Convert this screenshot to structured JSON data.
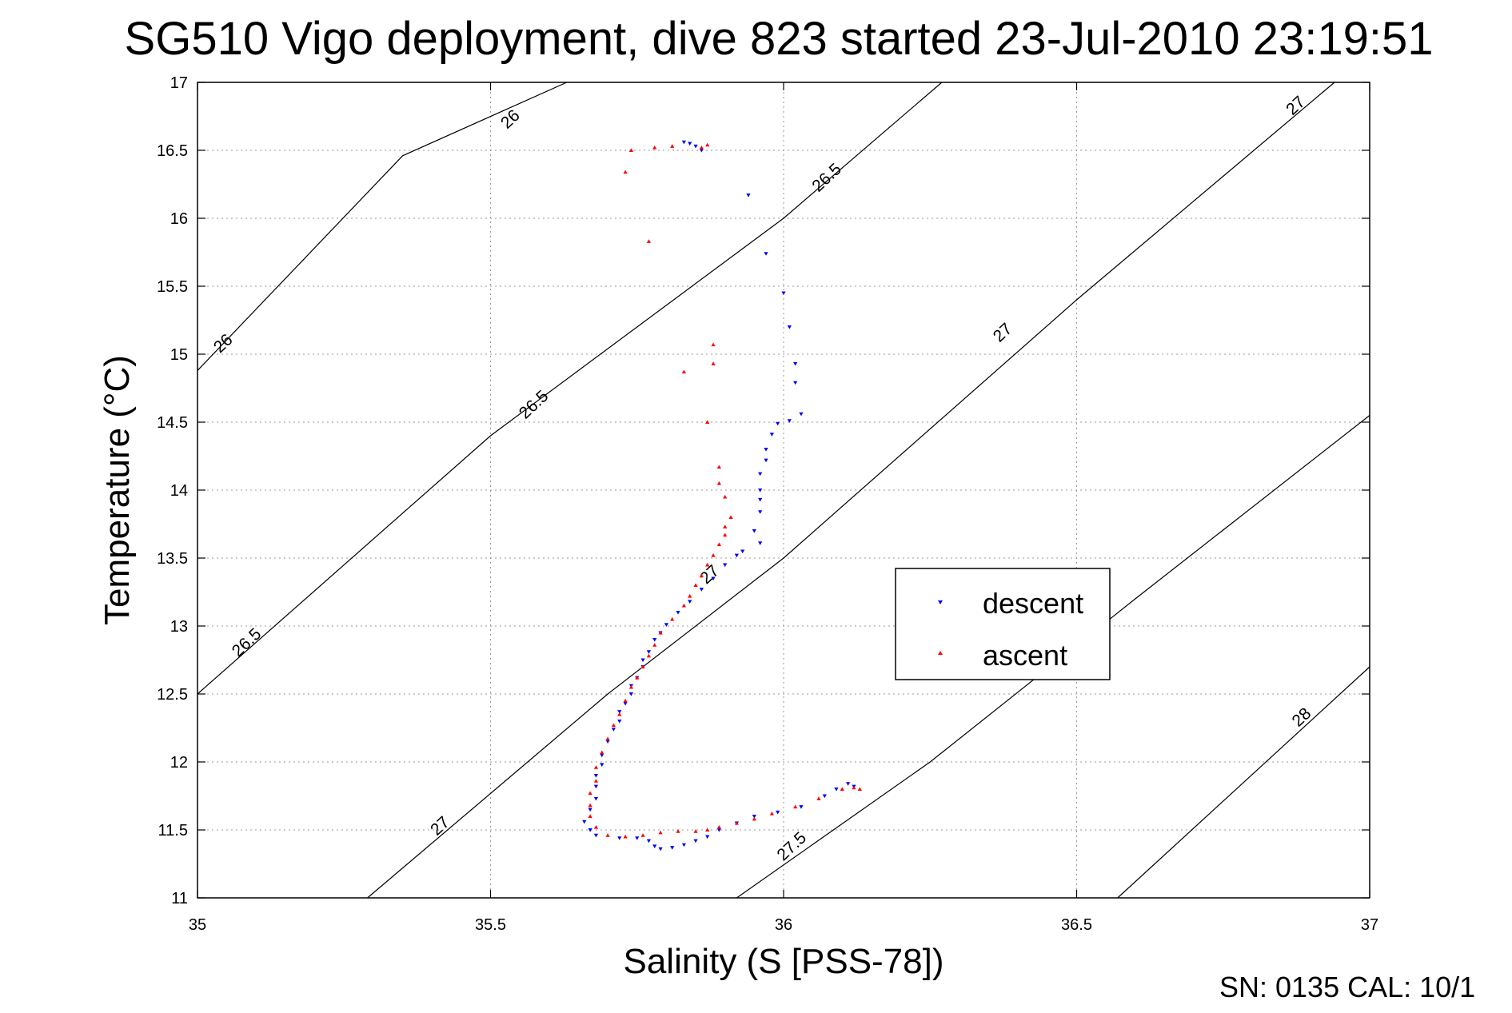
{
  "chart_data": {
    "type": "scatter",
    "title": "SG510 Vigo deployment, dive 823 started 23-Jul-2010 23:19:51",
    "xlabel": "Salinity (S [PSS-78])",
    "ylabel": "Temperature (°C)",
    "xlim": [
      35,
      37
    ],
    "ylim": [
      11,
      17
    ],
    "x_ticks": [
      "35",
      "35.5",
      "36",
      "36.5",
      "37"
    ],
    "y_ticks": [
      "11",
      "11.5",
      "12",
      "12.5",
      "13",
      "13.5",
      "14",
      "14.5",
      "15",
      "15.5",
      "16",
      "16.5",
      "17"
    ],
    "grid": true,
    "legend_position": "right",
    "colors": {
      "descent": "#0000ff",
      "ascent": "#ff0000",
      "contour": "#000000",
      "grid": "#999999"
    },
    "density_contours": [
      {
        "name": "26",
        "points": [
          [
            35.0,
            14.88
          ],
          [
            35.35,
            16.46
          ],
          [
            35.63,
            17.0
          ]
        ]
      },
      {
        "name": "26.5",
        "points": [
          [
            35.0,
            12.5
          ],
          [
            35.5,
            14.4
          ],
          [
            36.0,
            16.0
          ],
          [
            36.27,
            17.0
          ]
        ]
      },
      {
        "name": "27",
        "points": [
          [
            35.29,
            11.0
          ],
          [
            35.7,
            12.5
          ],
          [
            36.0,
            13.5
          ],
          [
            36.5,
            15.4
          ],
          [
            36.94,
            17.0
          ]
        ]
      },
      {
        "name": "27.5",
        "points": [
          [
            35.92,
            11.0
          ],
          [
            36.25,
            12.0
          ],
          [
            36.6,
            13.2
          ],
          [
            37.0,
            14.55
          ]
        ]
      },
      {
        "name": "28",
        "points": [
          [
            36.57,
            11.0
          ],
          [
            37.0,
            12.7
          ]
        ]
      }
    ],
    "contour_labels": [
      {
        "text": "26",
        "x": 35.54,
        "y": 16.7
      },
      {
        "text": "26",
        "x": 35.05,
        "y": 15.05
      },
      {
        "text": "26.5",
        "x": 36.08,
        "y": 16.27
      },
      {
        "text": "26.5",
        "x": 35.58,
        "y": 14.6
      },
      {
        "text": "26.5",
        "x": 35.09,
        "y": 12.85
      },
      {
        "text": "27",
        "x": 36.88,
        "y": 16.8
      },
      {
        "text": "27",
        "x": 36.38,
        "y": 15.13
      },
      {
        "text": "27",
        "x": 35.88,
        "y": 13.35
      },
      {
        "text": "27",
        "x": 35.42,
        "y": 11.5
      },
      {
        "text": "27.5",
        "x": 36.02,
        "y": 11.35
      },
      {
        "text": "28",
        "x": 36.89,
        "y": 12.3
      }
    ],
    "series": [
      {
        "name": "descent",
        "marker": "triangle-down",
        "points": [
          [
            35.83,
            16.56
          ],
          [
            35.84,
            16.55
          ],
          [
            35.85,
            16.53
          ],
          [
            35.86,
            16.5
          ],
          [
            35.94,
            16.17
          ],
          [
            35.97,
            15.74
          ],
          [
            36.0,
            15.45
          ],
          [
            36.01,
            15.2
          ],
          [
            36.02,
            14.93
          ],
          [
            36.02,
            14.79
          ],
          [
            36.03,
            14.56
          ],
          [
            36.01,
            14.51
          ],
          [
            35.99,
            14.49
          ],
          [
            35.98,
            14.41
          ],
          [
            35.97,
            14.3
          ],
          [
            35.97,
            14.22
          ],
          [
            35.96,
            14.12
          ],
          [
            35.96,
            14.0
          ],
          [
            35.96,
            13.93
          ],
          [
            35.96,
            13.84
          ],
          [
            35.95,
            13.7
          ],
          [
            35.96,
            13.61
          ],
          [
            35.93,
            13.55
          ],
          [
            35.92,
            13.52
          ],
          [
            35.9,
            13.45
          ],
          [
            35.88,
            13.35
          ],
          [
            35.86,
            13.27
          ],
          [
            35.84,
            13.18
          ],
          [
            35.82,
            13.1
          ],
          [
            35.8,
            13.01
          ],
          [
            35.79,
            12.95
          ],
          [
            35.78,
            12.9
          ],
          [
            35.77,
            12.81
          ],
          [
            35.76,
            12.75
          ],
          [
            35.76,
            12.7
          ],
          [
            35.75,
            12.62
          ],
          [
            35.74,
            12.56
          ],
          [
            35.74,
            12.5
          ],
          [
            35.73,
            12.43
          ],
          [
            35.72,
            12.37
          ],
          [
            35.72,
            12.3
          ],
          [
            35.71,
            12.24
          ],
          [
            35.7,
            12.15
          ],
          [
            35.69,
            12.05
          ],
          [
            35.69,
            11.98
          ],
          [
            35.68,
            11.9
          ],
          [
            35.68,
            11.82
          ],
          [
            35.68,
            11.73
          ],
          [
            35.67,
            11.65
          ],
          [
            35.66,
            11.56
          ],
          [
            35.67,
            11.5
          ],
          [
            35.68,
            11.46
          ],
          [
            35.72,
            11.44
          ],
          [
            35.75,
            11.44
          ],
          [
            35.77,
            11.42
          ],
          [
            35.78,
            11.38
          ],
          [
            35.79,
            11.36
          ],
          [
            35.81,
            11.37
          ],
          [
            35.83,
            11.39
          ],
          [
            35.85,
            11.42
          ],
          [
            35.87,
            11.45
          ],
          [
            35.89,
            11.5
          ],
          [
            35.92,
            11.55
          ],
          [
            35.95,
            11.6
          ],
          [
            35.99,
            11.63
          ],
          [
            36.03,
            11.67
          ],
          [
            36.07,
            11.75
          ],
          [
            36.09,
            11.8
          ],
          [
            36.11,
            11.84
          ],
          [
            36.12,
            11.82
          ]
        ]
      },
      {
        "name": "ascent",
        "marker": "triangle-up",
        "points": [
          [
            35.74,
            16.5
          ],
          [
            35.78,
            16.52
          ],
          [
            35.81,
            16.53
          ],
          [
            35.87,
            16.54
          ],
          [
            35.86,
            16.52
          ],
          [
            35.73,
            16.34
          ],
          [
            35.77,
            15.83
          ],
          [
            35.88,
            15.07
          ],
          [
            35.88,
            14.93
          ],
          [
            35.83,
            14.87
          ],
          [
            35.87,
            14.5
          ],
          [
            35.89,
            14.17
          ],
          [
            35.89,
            14.05
          ],
          [
            35.9,
            13.95
          ],
          [
            35.91,
            13.8
          ],
          [
            35.9,
            13.73
          ],
          [
            35.9,
            13.67
          ],
          [
            35.89,
            13.6
          ],
          [
            35.88,
            13.52
          ],
          [
            35.87,
            13.45
          ],
          [
            35.86,
            13.37
          ],
          [
            35.85,
            13.3
          ],
          [
            35.84,
            13.22
          ],
          [
            35.83,
            13.15
          ],
          [
            35.81,
            13.05
          ],
          [
            35.79,
            12.95
          ],
          [
            35.78,
            12.86
          ],
          [
            35.77,
            12.78
          ],
          [
            35.76,
            12.7
          ],
          [
            35.75,
            12.62
          ],
          [
            35.74,
            12.55
          ],
          [
            35.73,
            12.45
          ],
          [
            35.72,
            12.35
          ],
          [
            35.71,
            12.27
          ],
          [
            35.7,
            12.17
          ],
          [
            35.69,
            12.07
          ],
          [
            35.68,
            11.96
          ],
          [
            35.68,
            11.86
          ],
          [
            35.67,
            11.77
          ],
          [
            35.67,
            11.68
          ],
          [
            35.67,
            11.6
          ],
          [
            35.68,
            11.52
          ],
          [
            35.7,
            11.46
          ],
          [
            35.73,
            11.45
          ],
          [
            35.76,
            11.46
          ],
          [
            35.79,
            11.48
          ],
          [
            35.82,
            11.49
          ],
          [
            35.85,
            11.49
          ],
          [
            35.87,
            11.5
          ],
          [
            35.89,
            11.52
          ],
          [
            35.92,
            11.55
          ],
          [
            35.95,
            11.58
          ],
          [
            35.98,
            11.62
          ],
          [
            36.02,
            11.67
          ],
          [
            36.06,
            11.73
          ],
          [
            36.1,
            11.8
          ],
          [
            36.12,
            11.81
          ],
          [
            36.13,
            11.8
          ]
        ]
      }
    ],
    "footer_text": "SN: 0135  CAL: 10/1"
  }
}
